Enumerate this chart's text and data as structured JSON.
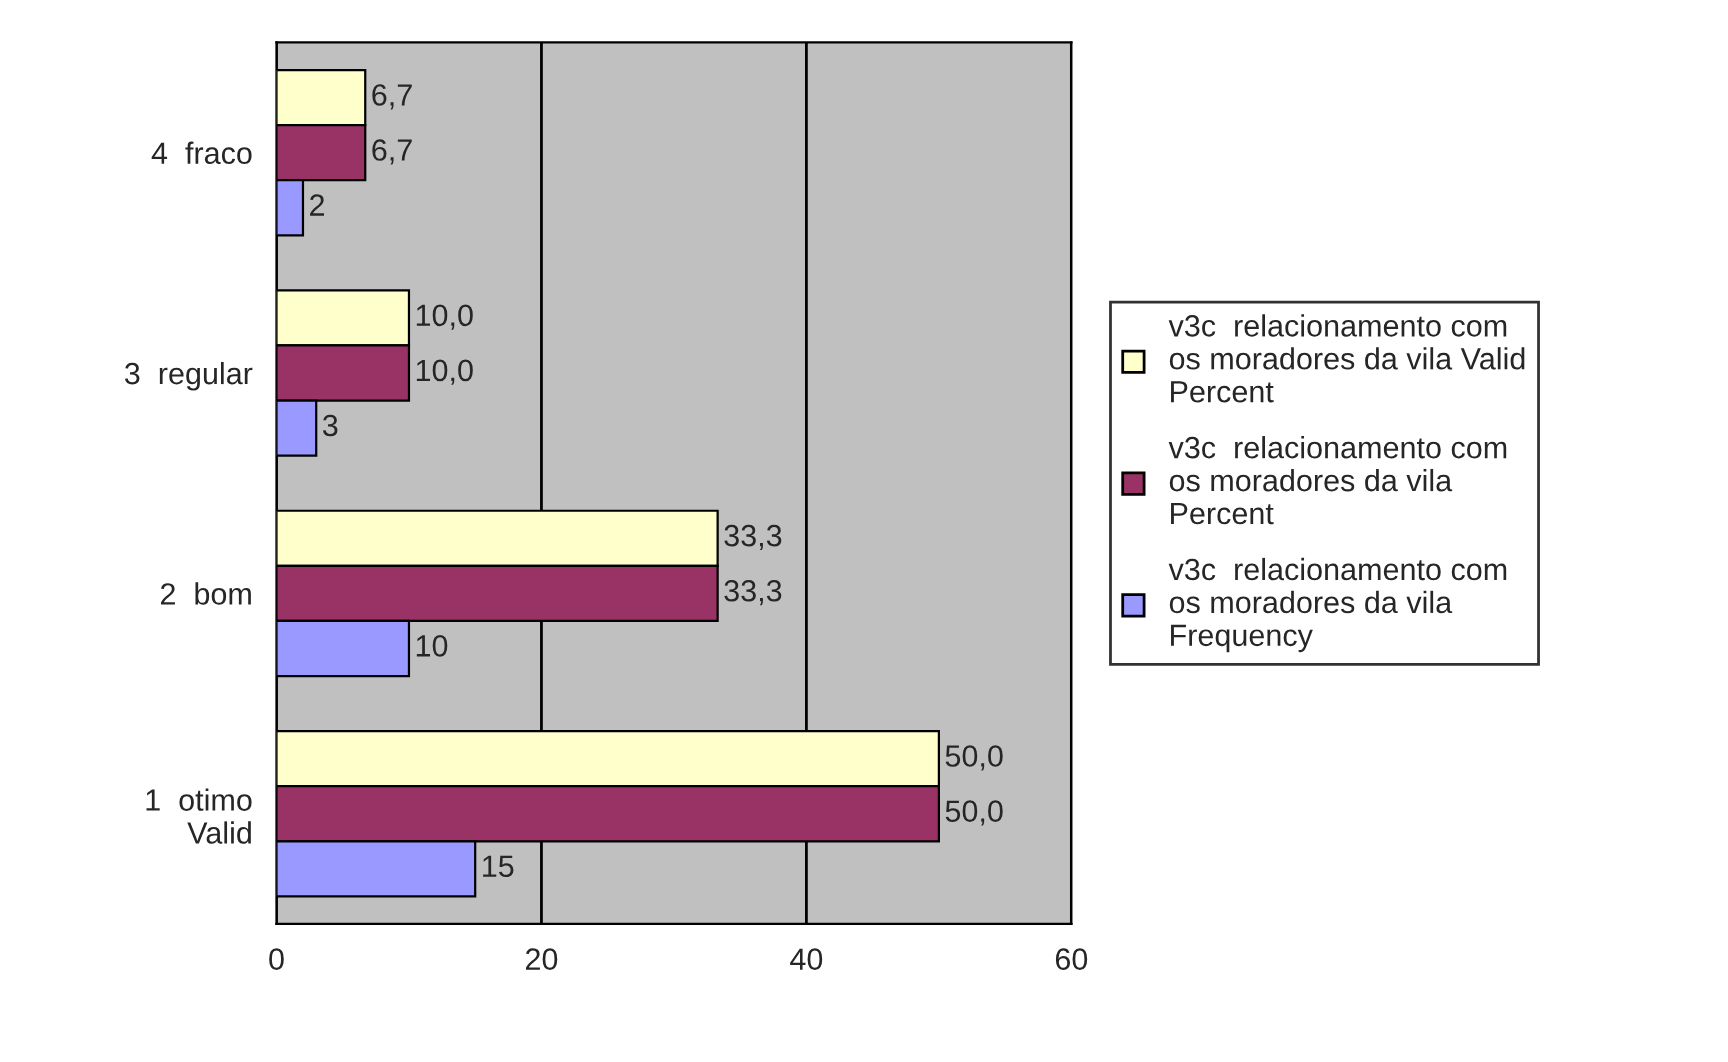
{
  "chart_data": {
    "type": "bar",
    "orientation": "horizontal",
    "categories": [
      "4  fraco",
      "3  regular",
      "2  bom",
      "1  otimo\nValid"
    ],
    "series": [
      {
        "name": "v3c  relacionamento com\nos moradores da vila Valid\nPercent",
        "color": "#ffffcc",
        "values": [
          6.7,
          10.0,
          33.3,
          50.0
        ],
        "value_labels": [
          "6,7",
          "10,0",
          "33,3",
          "50,0"
        ]
      },
      {
        "name": "v3c  relacionamento com\nos moradores da vila\nPercent",
        "color": "#993366",
        "values": [
          6.7,
          10.0,
          33.3,
          50.0
        ],
        "value_labels": [
          "6,7",
          "10,0",
          "33,3",
          "50,0"
        ]
      },
      {
        "name": "v3c  relacionamento com\nos moradores da vila\nFrequency",
        "color": "#9999ff",
        "values": [
          2,
          3,
          10,
          15
        ],
        "value_labels": [
          "2",
          "3",
          "10",
          "15"
        ]
      }
    ],
    "xlim": [
      0,
      60
    ],
    "xticks": [
      0,
      20,
      40,
      60
    ],
    "grid": "x",
    "legend": "right"
  }
}
